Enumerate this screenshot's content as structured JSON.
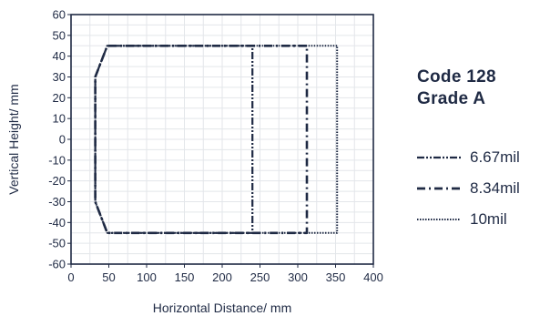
{
  "chart_data": {
    "type": "line",
    "title": "",
    "xlabel": "Horizontal Distance/ mm",
    "ylabel": "Vertical Height/ mm",
    "xlim": [
      0,
      400
    ],
    "ylim": [
      -60,
      60
    ],
    "x_ticks": [
      "0",
      "50",
      "100",
      "150",
      "200",
      "250",
      "300",
      "350",
      "400"
    ],
    "y_ticks": [
      "60",
      "50",
      "40",
      "30",
      "20",
      "10",
      "0",
      "-10",
      "-20",
      "-30",
      "-40",
      "-50",
      "-60"
    ],
    "grid": true,
    "legend_position": "right",
    "legend_heading": [
      "Code 128",
      "Grade A"
    ],
    "series": [
      {
        "name": "6.67mil",
        "style": "dash-dot-dot",
        "color": "#1f2a44",
        "x": [
          240,
          48,
          32,
          32,
          32,
          48,
          240,
          240
        ],
        "y": [
          45,
          45,
          30,
          0,
          -30,
          -45,
          -45,
          45
        ]
      },
      {
        "name": "8.34mil",
        "style": "dash-dot",
        "color": "#1f2a44",
        "x": [
          312,
          48,
          32,
          32,
          32,
          48,
          312,
          312
        ],
        "y": [
          45,
          45,
          30,
          0,
          -30,
          -45,
          -45,
          45
        ]
      },
      {
        "name": "10mil",
        "style": "dotted",
        "color": "#1f2a44",
        "x": [
          352,
          48,
          32,
          32,
          32,
          48,
          352,
          352
        ],
        "y": [
          45,
          45,
          30,
          0,
          -30,
          -45,
          -45,
          45
        ]
      }
    ]
  }
}
